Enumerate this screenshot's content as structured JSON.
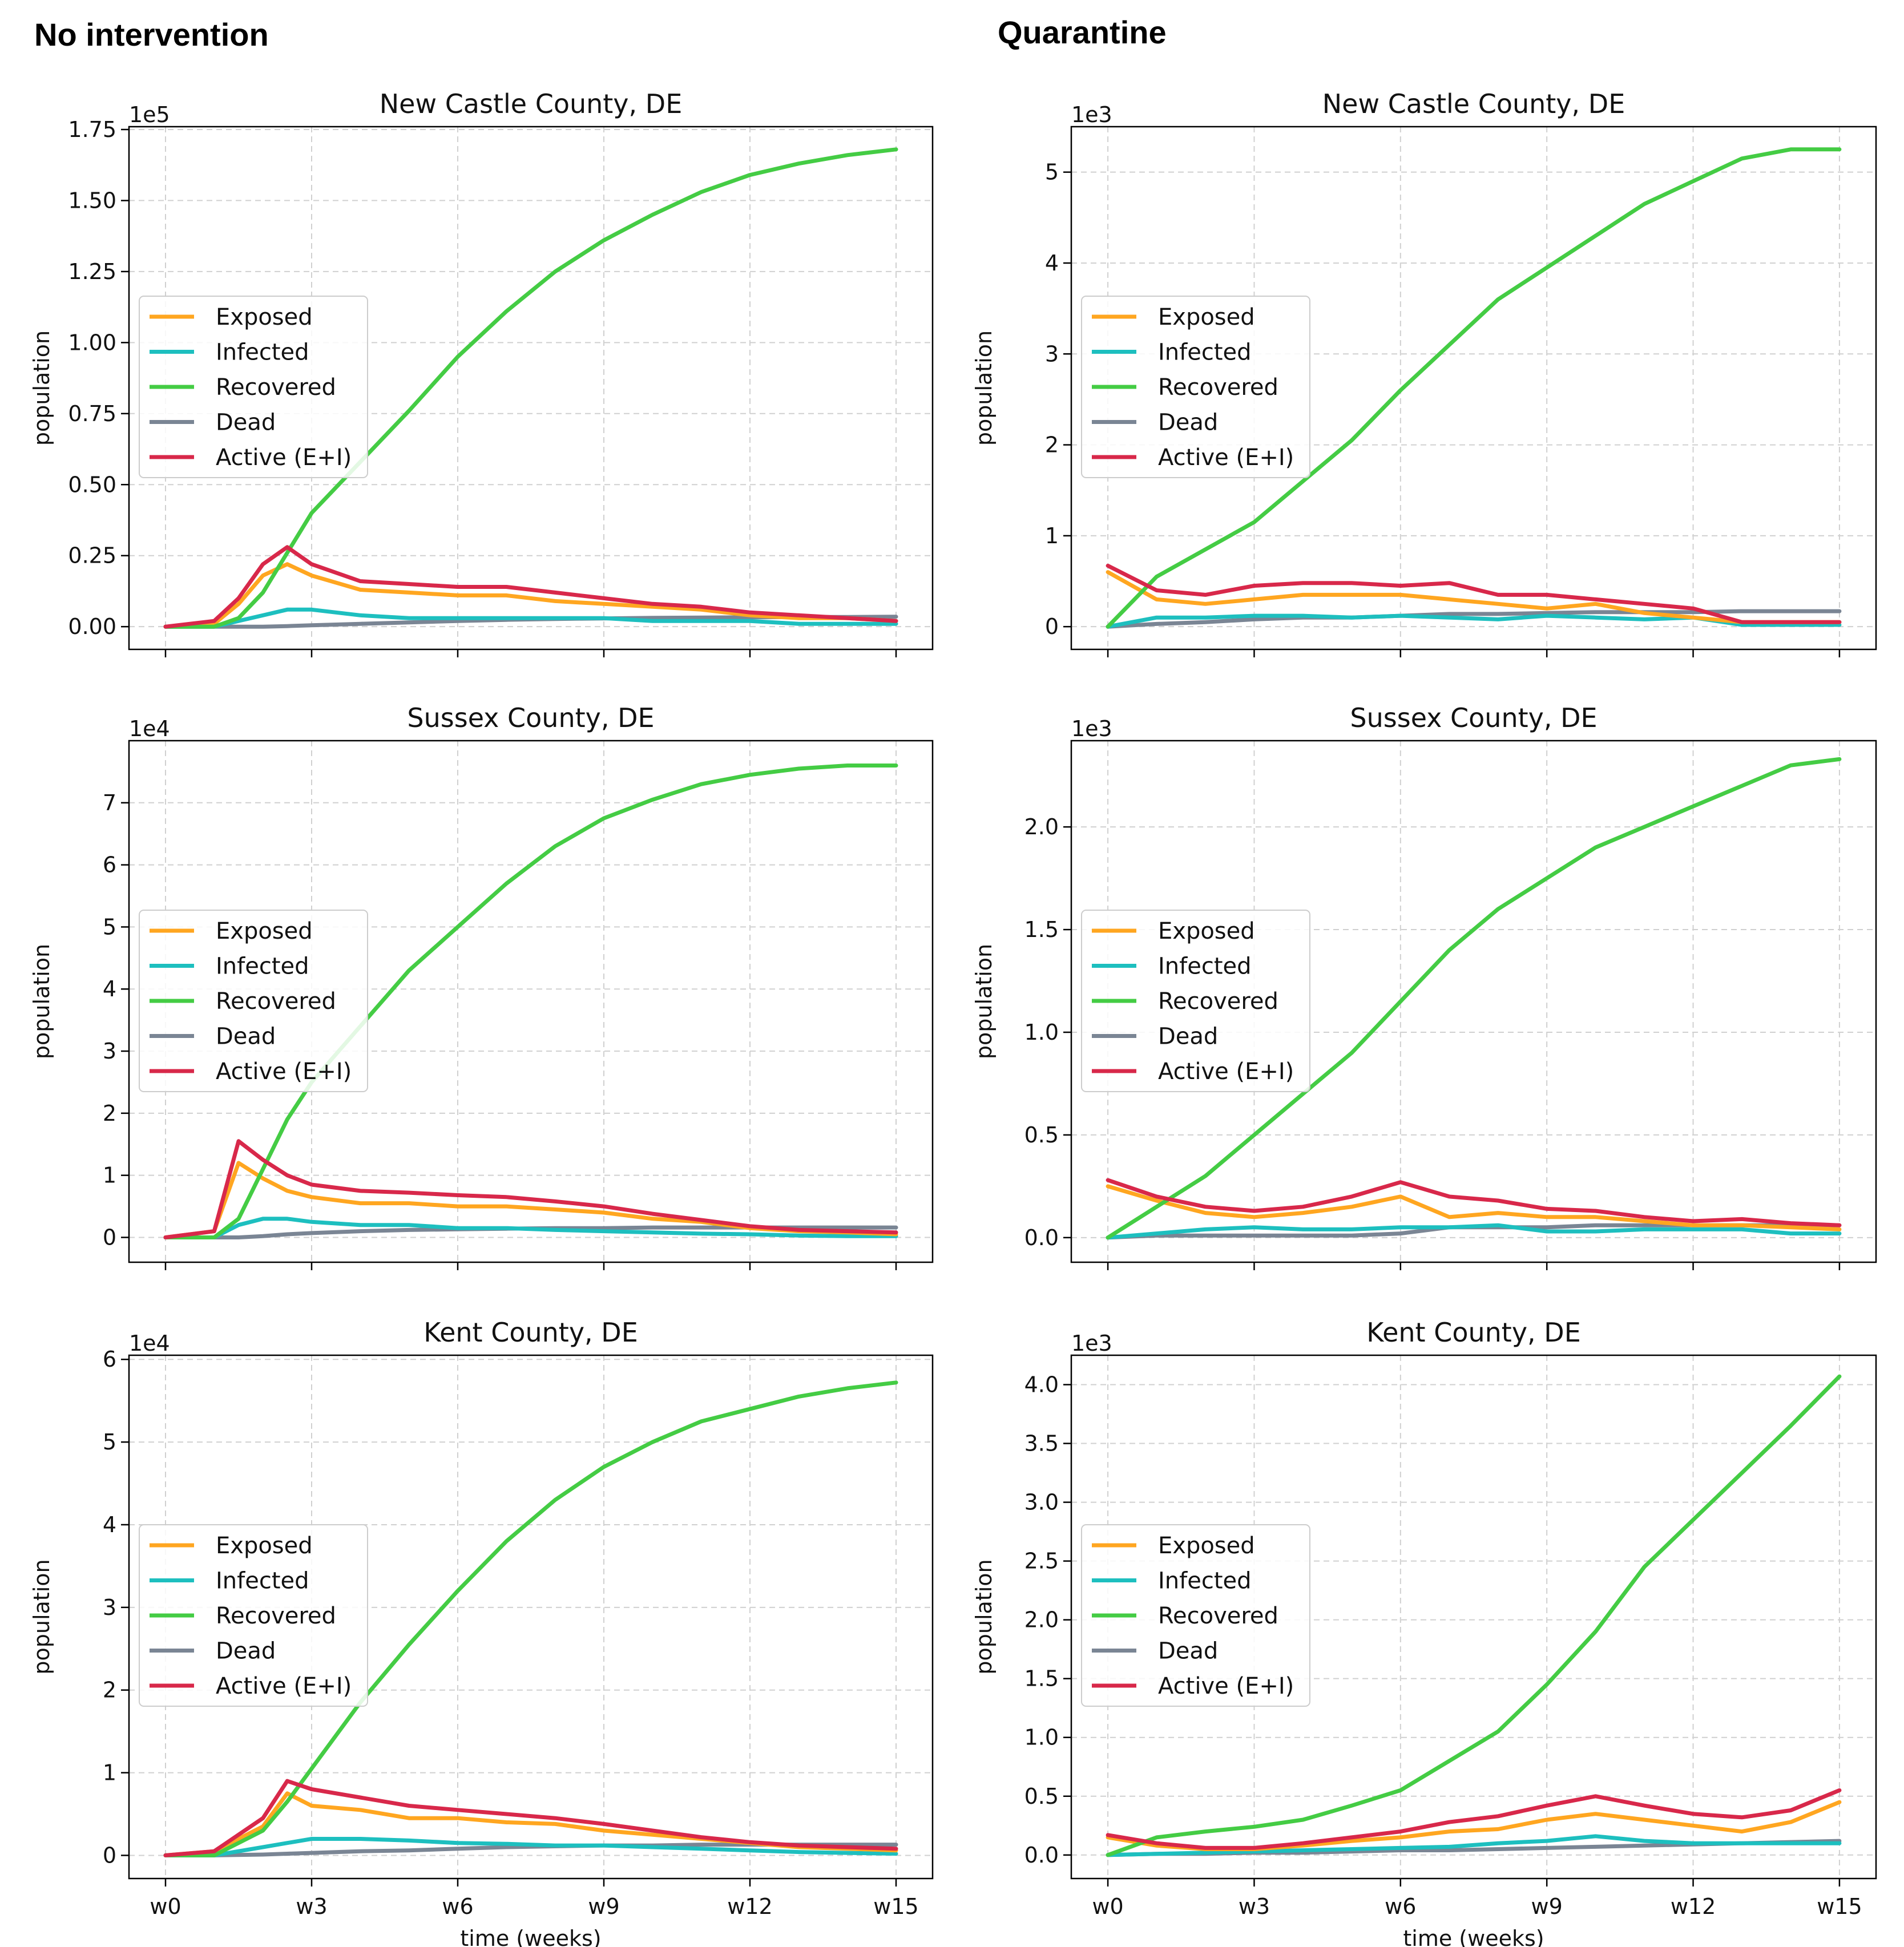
{
  "columns": [
    {
      "title": "No intervention"
    },
    {
      "title": "Quarantine"
    }
  ],
  "legend_labels": [
    "Exposed",
    "Infected",
    "Recovered",
    "Dead",
    "Active (E+I)"
  ],
  "colors": {
    "Exposed": "#ffa620",
    "Infected": "#1dbfbf",
    "Recovered": "#44cc44",
    "Dead": "#7a8594",
    "Active (E+I)": "#d8284a"
  },
  "chart_data": [
    {
      "type": "line",
      "title": "New Castle County, DE",
      "ylabel": "population",
      "xlabel": "",
      "xticks": [
        "w0",
        "w3",
        "w6",
        "w9",
        "w12",
        "w15"
      ],
      "x_range": [
        0,
        15
      ],
      "legend_position": "center-left",
      "grid": true,
      "y_multiplier": "1e5",
      "ylim": [
        -0.08,
        1.76
      ],
      "yticks": [
        "0.00",
        "0.25",
        "0.50",
        "0.75",
        "1.00",
        "1.25",
        "1.50",
        "1.75"
      ],
      "x": [
        0,
        1,
        1.5,
        2,
        2.5,
        3,
        4,
        5,
        6,
        7,
        8,
        9,
        10,
        11,
        12,
        13,
        14,
        15
      ],
      "series": [
        {
          "name": "Exposed",
          "values": [
            0,
            0.01,
            0.08,
            0.18,
            0.22,
            0.18,
            0.13,
            0.12,
            0.11,
            0.11,
            0.09,
            0.08,
            0.07,
            0.06,
            0.04,
            0.03,
            0.03,
            0.02
          ]
        },
        {
          "name": "Infected",
          "values": [
            0,
            0,
            0.02,
            0.04,
            0.06,
            0.06,
            0.04,
            0.03,
            0.03,
            0.03,
            0.03,
            0.03,
            0.02,
            0.02,
            0.02,
            0.01,
            0.01,
            0.01
          ]
        },
        {
          "name": "Recovered",
          "values": [
            0,
            0,
            0.03,
            0.12,
            0.26,
            0.4,
            0.58,
            0.76,
            0.95,
            1.11,
            1.25,
            1.36,
            1.45,
            1.53,
            1.59,
            1.63,
            1.66,
            1.68
          ]
        },
        {
          "name": "Dead",
          "values": [
            0,
            0,
            0,
            0,
            0.002,
            0.005,
            0.01,
            0.015,
            0.02,
            0.024,
            0.027,
            0.029,
            0.031,
            0.032,
            0.033,
            0.034,
            0.034,
            0.035
          ]
        },
        {
          "name": "Active (E+I)",
          "values": [
            0,
            0.02,
            0.1,
            0.22,
            0.28,
            0.22,
            0.16,
            0.15,
            0.14,
            0.14,
            0.12,
            0.1,
            0.08,
            0.07,
            0.05,
            0.04,
            0.03,
            0.02
          ]
        }
      ]
    },
    {
      "type": "line",
      "title": "New Castle County, DE",
      "ylabel": "population",
      "xlabel": "",
      "xticks": [
        "w0",
        "w3",
        "w6",
        "w9",
        "w12",
        "w15"
      ],
      "x_range": [
        0,
        15
      ],
      "legend_position": "center-left",
      "grid": true,
      "y_multiplier": "1e3",
      "ylim": [
        -0.25,
        5.5
      ],
      "yticks": [
        "0",
        "1",
        "2",
        "3",
        "4",
        "5"
      ],
      "x": [
        0,
        1,
        2,
        3,
        4,
        5,
        6,
        7,
        8,
        9,
        10,
        11,
        12,
        13,
        14,
        15
      ],
      "series": [
        {
          "name": "Exposed",
          "values": [
            0.6,
            0.3,
            0.25,
            0.3,
            0.35,
            0.35,
            0.35,
            0.3,
            0.25,
            0.2,
            0.25,
            0.15,
            0.1,
            0.05,
            0.05,
            0.05
          ]
        },
        {
          "name": "Infected",
          "values": [
            0,
            0.1,
            0.1,
            0.12,
            0.12,
            0.1,
            0.12,
            0.1,
            0.08,
            0.12,
            0.1,
            0.08,
            0.1,
            0.02,
            0.02,
            0.02
          ]
        },
        {
          "name": "Recovered",
          "values": [
            0,
            0.55,
            0.85,
            1.15,
            1.6,
            2.05,
            2.6,
            3.1,
            3.6,
            3.95,
            4.3,
            4.65,
            4.9,
            5.15,
            5.25,
            5.25
          ]
        },
        {
          "name": "Dead",
          "values": [
            0,
            0.03,
            0.05,
            0.08,
            0.1,
            0.1,
            0.12,
            0.14,
            0.14,
            0.15,
            0.16,
            0.16,
            0.16,
            0.17,
            0.17,
            0.17
          ]
        },
        {
          "name": "Active (E+I)",
          "values": [
            0.67,
            0.4,
            0.35,
            0.45,
            0.48,
            0.48,
            0.45,
            0.48,
            0.35,
            0.35,
            0.3,
            0.25,
            0.2,
            0.05,
            0.05,
            0.05
          ]
        }
      ]
    },
    {
      "type": "line",
      "title": "Sussex County, DE",
      "ylabel": "population",
      "xlabel": "",
      "xticks": [
        "w0",
        "w3",
        "w6",
        "w9",
        "w12",
        "w15"
      ],
      "x_range": [
        0,
        15
      ],
      "legend_position": "center-left",
      "grid": true,
      "y_multiplier": "1e4",
      "ylim": [
        -0.4,
        8.0
      ],
      "yticks": [
        "0",
        "1",
        "2",
        "3",
        "4",
        "5",
        "6",
        "7"
      ],
      "x": [
        0,
        1,
        1.5,
        2,
        2.5,
        3,
        4,
        5,
        6,
        7,
        8,
        9,
        10,
        11,
        12,
        13,
        14,
        15
      ],
      "series": [
        {
          "name": "Exposed",
          "values": [
            0,
            0.1,
            1.2,
            0.95,
            0.75,
            0.65,
            0.55,
            0.55,
            0.5,
            0.5,
            0.45,
            0.4,
            0.3,
            0.25,
            0.15,
            0.1,
            0.08,
            0.05
          ]
        },
        {
          "name": "Infected",
          "values": [
            0,
            0,
            0.2,
            0.3,
            0.3,
            0.25,
            0.2,
            0.2,
            0.15,
            0.15,
            0.12,
            0.1,
            0.08,
            0.06,
            0.05,
            0.03,
            0.02,
            0.02
          ]
        },
        {
          "name": "Recovered",
          "values": [
            0,
            0,
            0.3,
            1.1,
            1.9,
            2.5,
            3.4,
            4.3,
            5.0,
            5.7,
            6.3,
            6.75,
            7.05,
            7.3,
            7.45,
            7.55,
            7.6,
            7.6
          ]
        },
        {
          "name": "Dead",
          "values": [
            0,
            0,
            0,
            0.02,
            0.05,
            0.07,
            0.1,
            0.12,
            0.13,
            0.14,
            0.15,
            0.15,
            0.16,
            0.16,
            0.16,
            0.16,
            0.16,
            0.16
          ]
        },
        {
          "name": "Active (E+I)",
          "values": [
            0,
            0.1,
            1.55,
            1.25,
            1.0,
            0.85,
            0.75,
            0.72,
            0.68,
            0.65,
            0.58,
            0.5,
            0.38,
            0.28,
            0.18,
            0.12,
            0.1,
            0.08
          ]
        }
      ]
    },
    {
      "type": "line",
      "title": "Sussex County, DE",
      "ylabel": "population",
      "xlabel": "",
      "xticks": [
        "w0",
        "w3",
        "w6",
        "w9",
        "w12",
        "w15"
      ],
      "x_range": [
        0,
        15
      ],
      "legend_position": "center-left",
      "grid": true,
      "y_multiplier": "1e3",
      "ylim": [
        -0.12,
        2.42
      ],
      "yticks": [
        "0.0",
        "0.5",
        "1.0",
        "1.5",
        "2.0"
      ],
      "x": [
        0,
        1,
        2,
        3,
        4,
        5,
        6,
        7,
        8,
        9,
        10,
        11,
        12,
        13,
        14,
        15
      ],
      "series": [
        {
          "name": "Exposed",
          "values": [
            0.25,
            0.18,
            0.12,
            0.1,
            0.12,
            0.15,
            0.2,
            0.1,
            0.12,
            0.1,
            0.1,
            0.08,
            0.06,
            0.06,
            0.05,
            0.04
          ]
        },
        {
          "name": "Infected",
          "values": [
            0,
            0.02,
            0.04,
            0.05,
            0.04,
            0.04,
            0.05,
            0.05,
            0.06,
            0.03,
            0.03,
            0.04,
            0.04,
            0.04,
            0.02,
            0.02
          ]
        },
        {
          "name": "Recovered",
          "values": [
            0,
            0.15,
            0.3,
            0.5,
            0.7,
            0.9,
            1.15,
            1.4,
            1.6,
            1.75,
            1.9,
            2.0,
            2.1,
            2.2,
            2.3,
            2.33
          ]
        },
        {
          "name": "Dead",
          "values": [
            0,
            0.01,
            0.01,
            0.01,
            0.01,
            0.01,
            0.02,
            0.05,
            0.05,
            0.05,
            0.06,
            0.06,
            0.06,
            0.06,
            0.06,
            0.06
          ]
        },
        {
          "name": "Active (E+I)",
          "values": [
            0.28,
            0.2,
            0.15,
            0.13,
            0.15,
            0.2,
            0.27,
            0.2,
            0.18,
            0.14,
            0.13,
            0.1,
            0.08,
            0.09,
            0.07,
            0.06
          ]
        }
      ]
    },
    {
      "type": "line",
      "title": "Kent County, DE",
      "ylabel": "population",
      "xlabel": "time (weeks)",
      "xticks": [
        "w0",
        "w3",
        "w6",
        "w9",
        "w12",
        "w15"
      ],
      "x_range": [
        0,
        15
      ],
      "legend_position": "center-left",
      "grid": true,
      "y_multiplier": "1e4",
      "ylim": [
        -0.28,
        6.05
      ],
      "yticks": [
        "0",
        "1",
        "2",
        "3",
        "4",
        "5",
        "6"
      ],
      "x": [
        0,
        1,
        2,
        2.5,
        3,
        4,
        5,
        6,
        7,
        8,
        9,
        10,
        11,
        12,
        13,
        14,
        15
      ],
      "series": [
        {
          "name": "Exposed",
          "values": [
            0,
            0.05,
            0.35,
            0.75,
            0.6,
            0.55,
            0.45,
            0.45,
            0.4,
            0.38,
            0.3,
            0.25,
            0.2,
            0.15,
            0.1,
            0.08,
            0.06
          ]
        },
        {
          "name": "Infected",
          "values": [
            0,
            0,
            0.1,
            0.15,
            0.2,
            0.2,
            0.18,
            0.15,
            0.14,
            0.12,
            0.12,
            0.1,
            0.08,
            0.06,
            0.04,
            0.03,
            0.02
          ]
        },
        {
          "name": "Recovered",
          "values": [
            0,
            0,
            0.3,
            0.65,
            1.05,
            1.85,
            2.55,
            3.2,
            3.8,
            4.3,
            4.7,
            5.0,
            5.25,
            5.4,
            5.55,
            5.65,
            5.72
          ]
        },
        {
          "name": "Dead",
          "values": [
            0,
            0,
            0.01,
            0.02,
            0.03,
            0.05,
            0.06,
            0.08,
            0.1,
            0.11,
            0.12,
            0.12,
            0.13,
            0.13,
            0.13,
            0.13,
            0.13
          ]
        },
        {
          "name": "Active (E+I)",
          "values": [
            0,
            0.05,
            0.45,
            0.9,
            0.8,
            0.7,
            0.6,
            0.55,
            0.5,
            0.45,
            0.38,
            0.3,
            0.22,
            0.16,
            0.12,
            0.1,
            0.08
          ]
        }
      ]
    },
    {
      "type": "line",
      "title": "Kent County, DE",
      "ylabel": "population",
      "xlabel": "time (weeks)",
      "xticks": [
        "w0",
        "w3",
        "w6",
        "w9",
        "w12",
        "w15"
      ],
      "x_range": [
        0,
        15
      ],
      "legend_position": "center-left",
      "grid": true,
      "y_multiplier": "1e3",
      "ylim": [
        -0.2,
        4.25
      ],
      "yticks": [
        "0.0",
        "0.5",
        "1.0",
        "1.5",
        "2.0",
        "2.5",
        "3.0",
        "3.5",
        "4.0"
      ],
      "x": [
        0,
        1,
        2,
        3,
        4,
        5,
        6,
        7,
        8,
        9,
        10,
        11,
        12,
        13,
        14,
        15
      ],
      "series": [
        {
          "name": "Exposed",
          "values": [
            0.15,
            0.08,
            0.05,
            0.05,
            0.08,
            0.12,
            0.15,
            0.2,
            0.22,
            0.3,
            0.35,
            0.3,
            0.25,
            0.2,
            0.28,
            0.45
          ]
        },
        {
          "name": "Infected",
          "values": [
            0,
            0.01,
            0.02,
            0.03,
            0.04,
            0.05,
            0.06,
            0.07,
            0.1,
            0.12,
            0.16,
            0.12,
            0.1,
            0.1,
            0.1,
            0.1
          ]
        },
        {
          "name": "Recovered",
          "values": [
            0,
            0.15,
            0.2,
            0.24,
            0.3,
            0.42,
            0.55,
            0.8,
            1.05,
            1.45,
            1.9,
            2.45,
            2.85,
            3.25,
            3.65,
            4.07
          ]
        },
        {
          "name": "Dead",
          "values": [
            0,
            0.01,
            0.01,
            0.02,
            0.02,
            0.03,
            0.04,
            0.04,
            0.05,
            0.06,
            0.07,
            0.08,
            0.09,
            0.1,
            0.11,
            0.12
          ]
        },
        {
          "name": "Active (E+I)",
          "values": [
            0.17,
            0.1,
            0.06,
            0.06,
            0.1,
            0.15,
            0.2,
            0.28,
            0.33,
            0.42,
            0.5,
            0.42,
            0.35,
            0.32,
            0.38,
            0.55
          ]
        }
      ]
    }
  ]
}
